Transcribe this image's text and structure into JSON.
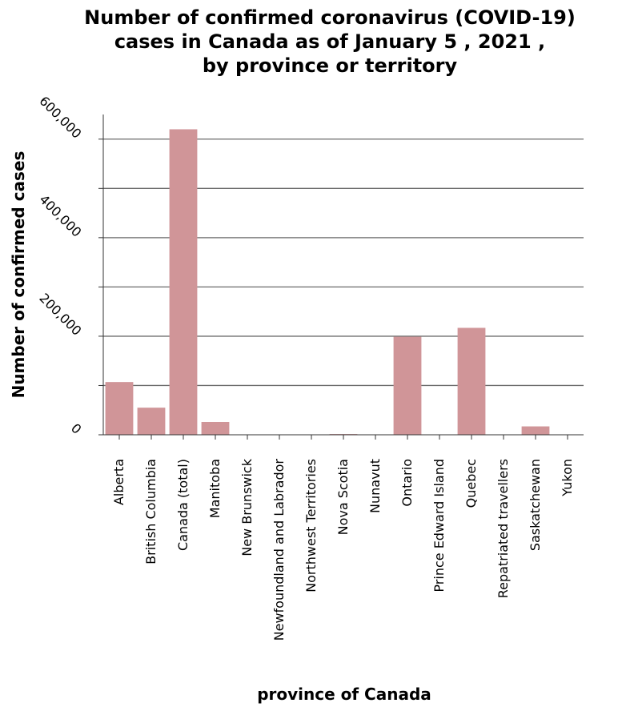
{
  "chart_data": {
    "type": "bar",
    "title": [
      "Number of confirmed coronavirus (COVID-19)",
      "cases in Canada as of January 5 , 2021 ,",
      "by province or territory"
    ],
    "xlabel": "province of Canada",
    "ylabel": "Number of confirmed cases",
    "categories": [
      "Alberta",
      "British Columbia",
      "Canada (total)",
      "Manitoba",
      "New Brunswick",
      "Newfoundland and Labrador",
      "Northwest Territories",
      "Nova Scotia",
      "Nunavut",
      "Ontario",
      "Prince Edward Island",
      "Quebec",
      "Repatriated travellers",
      "Saskatchewan",
      "Yukon"
    ],
    "values": [
      107000,
      55000,
      620000,
      26000,
      600,
      400,
      20,
      1500,
      270,
      199000,
      100,
      217000,
      13,
      17000,
      70
    ],
    "yticks": [
      0,
      200000,
      400000,
      600000
    ],
    "ytick_labels": [
      "0",
      "200,000",
      "400,000",
      "600,000"
    ],
    "ylim": [
      0,
      650000
    ],
    "grid": true,
    "colors": {
      "bar": "#d09598",
      "grid": "#6a6a6a",
      "axis": "#333333"
    }
  }
}
